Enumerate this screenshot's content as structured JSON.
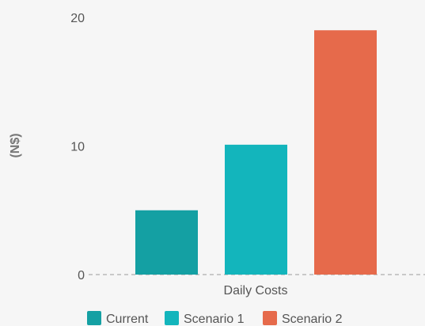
{
  "chart_data": {
    "type": "bar",
    "title": "",
    "xlabel": "",
    "ylabel": "(N$)",
    "categories": [
      "Daily Costs"
    ],
    "series": [
      {
        "name": "Current",
        "values": [
          5
        ],
        "color": "#14a0a3"
      },
      {
        "name": "Scenario 1",
        "values": [
          10.1
        ],
        "color": "#13b5bc"
      },
      {
        "name": "Scenario 2",
        "values": [
          19
        ],
        "color": "#e66a4b"
      }
    ],
    "ylim": [
      0,
      20
    ],
    "yticks": [
      "0",
      "10",
      "20"
    ],
    "grid": false,
    "baseline_style": "dashed",
    "legend_position": "bottom"
  }
}
